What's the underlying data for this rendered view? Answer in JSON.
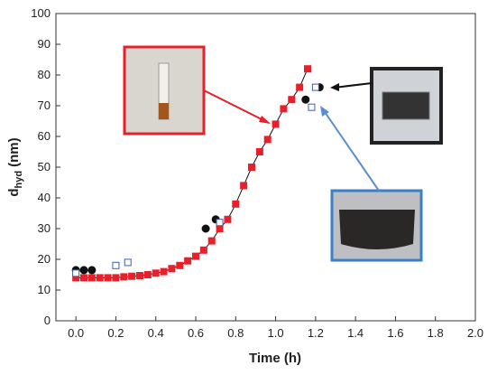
{
  "chart_data": {
    "type": "scatter",
    "x_label": "Time (h)",
    "y_label": {
      "main": "d",
      "sub": "hyd",
      "unit": "(nm)"
    },
    "xlim": [
      -0.1,
      2.0
    ],
    "xticks": [
      {
        "value": 0,
        "label": "0.0"
      },
      0.2,
      0.4,
      0.6,
      0.8,
      {
        "value": 1,
        "label": "1.0"
      },
      1.2,
      1.4,
      1.6,
      1.8,
      {
        "value": 2,
        "label": "2.0"
      }
    ],
    "ylim": [
      0,
      100
    ],
    "yticks": [
      0,
      10,
      20,
      30,
      40,
      50,
      60,
      70,
      80,
      90,
      100
    ],
    "series": [
      {
        "marker": "square",
        "filled": true,
        "line": true,
        "color": "#e8202a",
        "x": [
          0,
          0.04,
          0.08,
          0.12,
          0.16,
          0.2,
          0.24,
          0.28,
          0.32,
          0.36,
          0.4,
          0.44,
          0.48,
          0.52,
          0.56,
          0.6,
          0.64,
          0.68,
          0.72,
          0.76,
          0.8,
          0.84,
          0.88,
          0.92,
          0.96,
          1,
          1.04,
          1.08,
          1.12,
          1.16
        ],
        "values": [
          14,
          14,
          14,
          14,
          14,
          14,
          14.3,
          14.5,
          14.7,
          15,
          15.5,
          16,
          17,
          18,
          19.5,
          21,
          23,
          26,
          30,
          33,
          38,
          44,
          50,
          55,
          59,
          64,
          69,
          72,
          76,
          82
        ]
      },
      {
        "marker": "circle",
        "filled": true,
        "line": false,
        "color": "#111111",
        "x": [
          0,
          0.04,
          0.08,
          0.65,
          0.7,
          1.15,
          1.22
        ],
        "values": [
          16.5,
          16.5,
          16.5,
          30,
          33,
          72,
          76
        ]
      },
      {
        "marker": "square",
        "filled": false,
        "line": false,
        "color": "#3a5fb0",
        "x": [
          0,
          0.2,
          0.26,
          0.72,
          1.18,
          1.2
        ],
        "values": [
          15.5,
          18,
          19,
          32,
          69.5,
          76
        ]
      }
    ]
  }
}
